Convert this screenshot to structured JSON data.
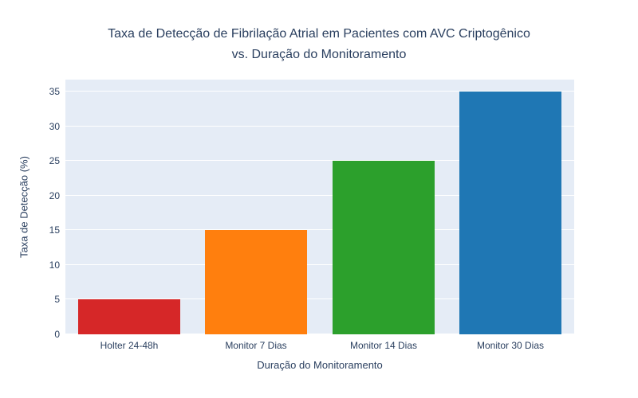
{
  "chart_data": {
    "type": "bar",
    "title": "Taxa de Detecção de Fibrilação Atrial em Pacientes com AVC Criptogênico vs. Duração do Monitoramento",
    "title_lines": [
      "Taxa de Detecção de Fibrilação Atrial em Pacientes com AVC Criptogênico",
      "vs. Duração do Monitoramento"
    ],
    "categories": [
      "Holter 24-48h",
      "Monitor 7 Dias",
      "Monitor 14 Dias",
      "Monitor 30 Dias"
    ],
    "values": [
      5,
      15,
      25,
      35
    ],
    "bar_colors": [
      "#d62728",
      "#ff7f0e",
      "#2ca02c",
      "#1f77b4"
    ],
    "xlabel": "Duração do Monitoramento",
    "ylabel": "Taxa de Detecção (%)",
    "ylim": [
      0,
      35
    ],
    "yticks": [
      0,
      5,
      10,
      15,
      20,
      25,
      30,
      35
    ],
    "grid": true,
    "legend": "none",
    "plot_bg_color": "#e5ecf6",
    "grid_color": "#ffffff",
    "text_color": "#2a3f5f",
    "paper_bg_color": "#ffffff"
  }
}
